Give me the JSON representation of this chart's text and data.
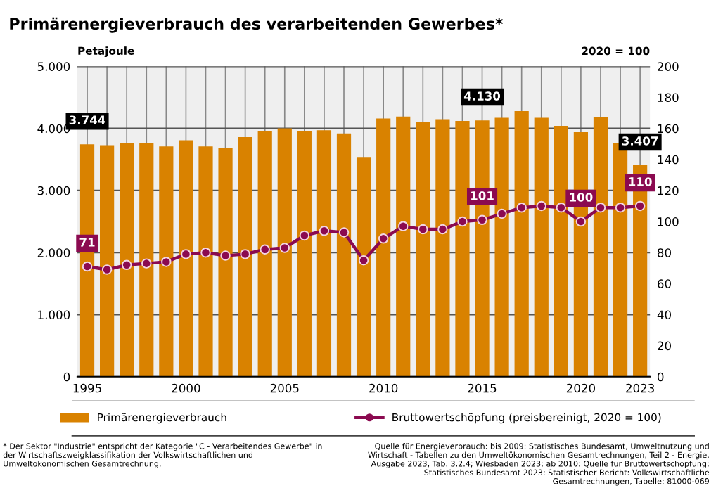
{
  "chart_data": {
    "type": "bar",
    "title": "Primärenergieverbrauch des verarbeitenden Gewerbes*",
    "ylabel": "Petajoule",
    "y2label": "2020 = 100",
    "categories": [
      "1995",
      null,
      null,
      null,
      null,
      "2000",
      null,
      null,
      null,
      null,
      "2005",
      null,
      null,
      null,
      null,
      "2010",
      null,
      null,
      null,
      null,
      "2015",
      null,
      null,
      null,
      null,
      "2020",
      null,
      null,
      "2023"
    ],
    "series": [
      {
        "name": "Primärenergieverbrauch",
        "color": "#d98200",
        "values": [
          3744,
          3730,
          3760,
          3770,
          3710,
          3810,
          3710,
          3680,
          3860,
          3960,
          4000,
          3950,
          3970,
          3920,
          3540,
          4160,
          4190,
          4100,
          4150,
          4120,
          4130,
          4170,
          4280,
          4170,
          4040,
          3940,
          4180,
          3770,
          3407
        ],
        "value_labels": [
          "3.744",
          null,
          null,
          null,
          null,
          null,
          null,
          null,
          null,
          null,
          null,
          null,
          null,
          null,
          null,
          null,
          null,
          null,
          null,
          null,
          "4.130",
          null,
          null,
          null,
          null,
          null,
          null,
          null,
          "3.407"
        ]
      },
      {
        "name": "Bruttowertschöpfung (preisbereinigt, 2020 = 100)",
        "type": "line",
        "axis": "y2",
        "color": "#8b0a50",
        "marker": "circle",
        "values": [
          71,
          69,
          72,
          73,
          74,
          79,
          80,
          78,
          79,
          82,
          83,
          91,
          94,
          93,
          75,
          89,
          97,
          95,
          95,
          100,
          101,
          105,
          109,
          110,
          109,
          100,
          109,
          109,
          110
        ],
        "value_labels": [
          "71",
          null,
          null,
          null,
          null,
          null,
          null,
          null,
          null,
          null,
          null,
          null,
          null,
          null,
          null,
          null,
          null,
          null,
          null,
          null,
          "101",
          null,
          null,
          null,
          null,
          "100",
          null,
          null,
          "110"
        ]
      }
    ],
    "ylim": [
      0,
      5000
    ],
    "yticks": [
      {
        "value": 0,
        "label": "0"
      },
      {
        "value": 1000,
        "label": "1.000"
      },
      {
        "value": 2000,
        "label": "2.000"
      },
      {
        "value": 3000,
        "label": "3.000"
      },
      {
        "value": 4000,
        "label": "4.000"
      },
      {
        "value": 5000,
        "label": "5.000"
      }
    ],
    "y2lim": [
      0,
      200
    ],
    "y2ticks": [
      0,
      20,
      40,
      60,
      80,
      100,
      120,
      140,
      160,
      180,
      200
    ],
    "grid": true,
    "legend": "bottom",
    "annotations": [
      "* Der Sektor \"Industrie\" entspricht der Kategorie \"C - Verarbeitendes Gewerbe\" in der Wirtschaftszweigklassifikation der Volkswirtschaftlichen und Umweltökonomischen Gesamtrechnung.",
      "Quelle für Energieverbrauch: bis 2009: Statistisches Bundesamt, Umweltnutzung und Wirtschaft - Tabellen zu den Umweltökonomischen Gesamtrechnungen, Teil 2 - Energie, Ausgabe 2023, Tab. 3.2.4; Wiesbaden 2023; ab 2010: Quelle für Bruttowertschöpfung: Statistisches Bundesamt 2023: Statistischer Bericht: Volkswirtschaftliche Gesamtrechnungen, Tabelle: 81000-069"
    ]
  }
}
